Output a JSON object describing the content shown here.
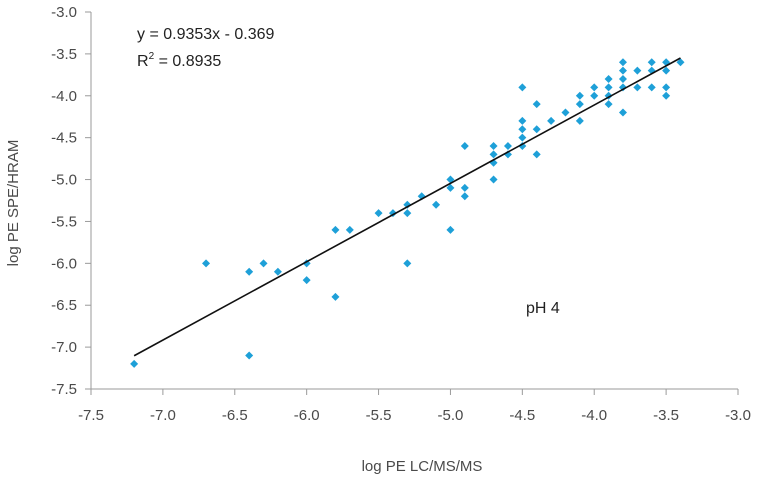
{
  "chart_data": {
    "type": "scatter",
    "xlabel": "log PE LC/MS/MS",
    "ylabel": "log PE SPE/HRAM",
    "xlim": [
      -7.5,
      -3.0
    ],
    "ylim": [
      -7.5,
      -3.0
    ],
    "x_ticks": [
      "-7.5",
      "-7.0",
      "-6.5",
      "-6.0",
      "-5.5",
      "-5.0",
      "-4.5",
      "-4.0",
      "-3.5",
      "-3.0"
    ],
    "y_ticks": [
      "-3.0",
      "-3.5",
      "-4.0",
      "-4.5",
      "-5.0",
      "-5.5",
      "-6.0",
      "-6.5",
      "-7.0",
      "-7.5"
    ],
    "grid": false,
    "marker_color": "#1ea0d8",
    "trendline_color": "#111111",
    "equation": "y = 0.9353x - 0.369",
    "r2_prefix": "R",
    "r2_sup": "2",
    "r2_suffix": " = 0.8935",
    "annotation": "pH 4",
    "trendline": {
      "slope": 0.9353,
      "intercept": -0.369,
      "x_range": [
        -7.2,
        -3.4
      ]
    },
    "points": [
      [
        -7.2,
        -7.2
      ],
      [
        -6.7,
        -6.0
      ],
      [
        -6.4,
        -7.1
      ],
      [
        -6.4,
        -6.1
      ],
      [
        -6.3,
        -6.0
      ],
      [
        -6.2,
        -6.1
      ],
      [
        -6.0,
        -6.0
      ],
      [
        -6.0,
        -6.2
      ],
      [
        -5.8,
        -5.6
      ],
      [
        -5.8,
        -6.4
      ],
      [
        -5.7,
        -5.6
      ],
      [
        -5.5,
        -5.4
      ],
      [
        -5.4,
        -5.4
      ],
      [
        -5.3,
        -5.3
      ],
      [
        -5.3,
        -5.4
      ],
      [
        -5.3,
        -6.0
      ],
      [
        -5.2,
        -5.2
      ],
      [
        -5.1,
        -5.3
      ],
      [
        -5.0,
        -5.0
      ],
      [
        -5.0,
        -5.1
      ],
      [
        -5.0,
        -5.6
      ],
      [
        -4.9,
        -4.6
      ],
      [
        -4.9,
        -5.1
      ],
      [
        -4.9,
        -5.2
      ],
      [
        -4.7,
        -4.6
      ],
      [
        -4.7,
        -4.7
      ],
      [
        -4.7,
        -4.8
      ],
      [
        -4.7,
        -5.0
      ],
      [
        -4.6,
        -4.6
      ],
      [
        -4.6,
        -4.7
      ],
      [
        -4.5,
        -3.9
      ],
      [
        -4.5,
        -4.3
      ],
      [
        -4.5,
        -4.4
      ],
      [
        -4.5,
        -4.5
      ],
      [
        -4.5,
        -4.6
      ],
      [
        -4.4,
        -4.1
      ],
      [
        -4.4,
        -4.4
      ],
      [
        -4.4,
        -4.7
      ],
      [
        -4.3,
        -4.3
      ],
      [
        -4.2,
        -4.2
      ],
      [
        -4.1,
        -4.0
      ],
      [
        -4.1,
        -4.1
      ],
      [
        -4.1,
        -4.3
      ],
      [
        -4.0,
        -3.9
      ],
      [
        -4.0,
        -4.0
      ],
      [
        -3.9,
        -3.8
      ],
      [
        -3.9,
        -3.9
      ],
      [
        -3.9,
        -4.0
      ],
      [
        -3.9,
        -4.1
      ],
      [
        -3.8,
        -3.6
      ],
      [
        -3.8,
        -3.7
      ],
      [
        -3.8,
        -3.8
      ],
      [
        -3.8,
        -3.9
      ],
      [
        -3.8,
        -4.2
      ],
      [
        -3.7,
        -3.7
      ],
      [
        -3.7,
        -3.9
      ],
      [
        -3.6,
        -3.6
      ],
      [
        -3.6,
        -3.7
      ],
      [
        -3.6,
        -3.9
      ],
      [
        -3.5,
        -3.6
      ],
      [
        -3.5,
        -3.7
      ],
      [
        -3.5,
        -3.9
      ],
      [
        -3.5,
        -4.0
      ],
      [
        -3.4,
        -3.6
      ]
    ]
  }
}
